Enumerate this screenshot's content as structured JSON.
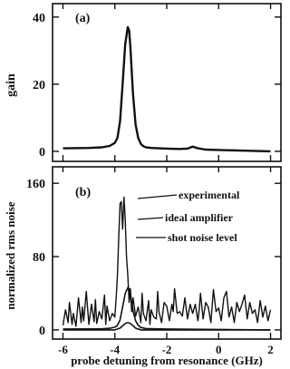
{
  "chart_data": [
    {
      "type": "line",
      "panel_label": "(a)",
      "ylabel": "gain",
      "ylim": [
        -3,
        44
      ],
      "yticks": [
        0,
        20,
        40
      ],
      "xlim": [
        -6.4,
        2.4
      ],
      "series": [
        {
          "x": [
            -6.0,
            -5.0,
            -4.5,
            -4.2,
            -4.0,
            -3.9,
            -3.8,
            -3.7,
            -3.6,
            -3.5,
            -3.45,
            -3.4,
            -3.35,
            -3.3,
            -3.2,
            -3.1,
            -3.0,
            -2.9,
            -2.8,
            -2.6,
            -2.3,
            -2.0,
            -1.5,
            -1.2,
            -1.0,
            -0.8,
            -0.5,
            0.0,
            1.0,
            2.0
          ],
          "y": [
            0.9,
            1.0,
            1.2,
            1.6,
            2.5,
            4.0,
            9.0,
            20.0,
            32.0,
            37.0,
            36.0,
            31.0,
            24.0,
            17.0,
            8.0,
            4.0,
            2.2,
            1.5,
            1.2,
            1.0,
            0.9,
            0.8,
            0.7,
            0.8,
            1.4,
            0.9,
            0.5,
            0.4,
            0.2,
            0.0
          ]
        }
      ]
    },
    {
      "type": "line",
      "panel_label": "(b)",
      "ylabel": "normalized rms noise",
      "xlabel": "probe detuning from resonance (GHz)",
      "ylim": [
        -10,
        178
      ],
      "yticks": [
        0,
        80,
        160
      ],
      "xlim": [
        -6.4,
        2.4
      ],
      "xticks": [
        -6,
        -4,
        -2,
        0,
        2
      ],
      "annotations": [
        "experimental",
        "ideal amplifier",
        "shot noise level"
      ],
      "series": [
        {
          "name": "experimental",
          "x": [
            -6.0,
            -5.9,
            -5.8,
            -5.75,
            -5.65,
            -5.6,
            -5.5,
            -5.4,
            -5.3,
            -5.25,
            -5.2,
            -5.1,
            -5.0,
            -4.9,
            -4.8,
            -4.75,
            -4.7,
            -4.6,
            -4.5,
            -4.4,
            -4.35,
            -4.3,
            -4.2,
            -4.1,
            -4.0,
            -3.95,
            -3.9,
            -3.85,
            -3.8,
            -3.75,
            -3.7,
            -3.65,
            -3.6,
            -3.55,
            -3.5,
            -3.45,
            -3.4,
            -3.35,
            -3.3,
            -3.2,
            -3.1,
            -3.0,
            -2.95,
            -2.9,
            -2.8,
            -2.7,
            -2.65,
            -2.6,
            -2.5,
            -2.4,
            -2.35,
            -2.3,
            -2.2,
            -2.1,
            -2.0,
            -1.9,
            -1.8,
            -1.75,
            -1.7,
            -1.6,
            -1.5,
            -1.4,
            -1.3,
            -1.2,
            -1.1,
            -1.0,
            -0.9,
            -0.8,
            -0.75,
            -0.7,
            -0.6,
            -0.5,
            -0.4,
            -0.3,
            -0.2,
            -0.1,
            0.0,
            0.1,
            0.2,
            0.3,
            0.4,
            0.5,
            0.6,
            0.7,
            0.8,
            0.9,
            1.0,
            1.1,
            1.2,
            1.3,
            1.4,
            1.5,
            1.6,
            1.7,
            1.8,
            1.9,
            2.0
          ],
          "y": [
            5,
            22,
            8,
            30,
            6,
            18,
            4,
            35,
            8,
            25,
            10,
            42,
            6,
            28,
            9,
            33,
            7,
            20,
            12,
            38,
            6,
            26,
            10,
            18,
            14,
            35,
            60,
            100,
            138,
            140,
            110,
            145,
            120,
            80,
            60,
            30,
            45,
            20,
            35,
            15,
            25,
            8,
            40,
            18,
            10,
            32,
            6,
            22,
            14,
            12,
            42,
            20,
            8,
            30,
            26,
            10,
            28,
            20,
            45,
            18,
            20,
            15,
            35,
            12,
            28,
            18,
            28,
            10,
            22,
            40,
            12,
            30,
            25,
            8,
            44,
            20,
            24,
            10,
            35,
            42,
            14,
            25,
            8,
            30,
            20,
            28,
            38,
            12,
            30,
            18,
            22,
            8,
            32,
            14,
            26,
            10,
            22
          ]
        },
        {
          "name": "ideal amplifier",
          "x": [
            -6.0,
            -4.5,
            -4.2,
            -4.0,
            -3.9,
            -3.8,
            -3.7,
            -3.6,
            -3.5,
            -3.45,
            -3.4,
            -3.3,
            -3.2,
            -3.1,
            -3.0,
            -2.8,
            -2.0,
            0.0,
            2.0
          ],
          "y": [
            1,
            1.2,
            1.8,
            3,
            5,
            11,
            25,
            40,
            46,
            45,
            39,
            21,
            10,
            5,
            2.7,
            1.5,
            1,
            0.5,
            0
          ]
        },
        {
          "name": "shot noise level",
          "x": [
            -6.0,
            -4.0,
            -3.8,
            -3.6,
            -3.5,
            -3.4,
            -3.2,
            -3.0,
            2.0
          ],
          "y": [
            0,
            0,
            2,
            7,
            8,
            7,
            2,
            0,
            0
          ]
        }
      ]
    }
  ]
}
